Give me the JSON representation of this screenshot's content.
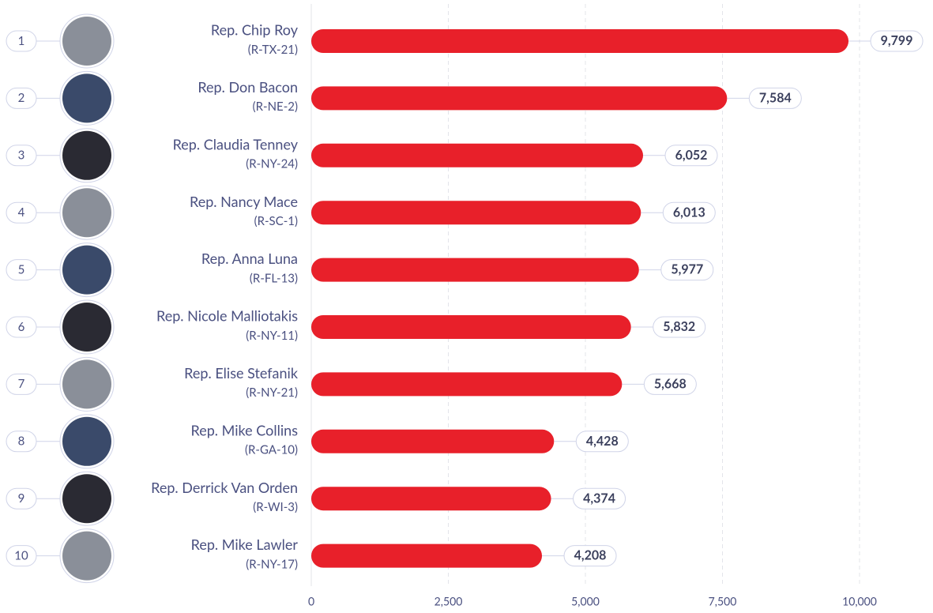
{
  "chart_data": {
    "type": "bar",
    "orientation": "horizontal",
    "ranks": [
      1,
      2,
      3,
      4,
      5,
      6,
      7,
      8,
      9,
      10
    ],
    "categories": [
      "Rep. Chip Roy",
      "Rep. Don Bacon",
      "Rep. Claudia Tenney",
      "Rep. Nancy Mace",
      "Rep. Anna Luna",
      "Rep. Nicole Malliotakis",
      "Rep. Elise Stefanik",
      "Rep. Mike Collins",
      "Rep. Derrick Van Orden",
      "Rep. Mike Lawler"
    ],
    "districts": [
      "(R-TX-21)",
      "(R-NE-2)",
      "(R-NY-24)",
      "(R-SC-1)",
      "(R-FL-13)",
      "(R-NY-11)",
      "(R-NY-21)",
      "(R-GA-10)",
      "(R-WI-3)",
      "(R-NY-17)"
    ],
    "values": [
      9799,
      7584,
      6052,
      6013,
      5977,
      5832,
      5668,
      4428,
      4374,
      4208
    ],
    "value_labels": [
      "9,799",
      "7,584",
      "6,052",
      "6,013",
      "5,977",
      "5,832",
      "5,668",
      "4,428",
      "4,374",
      "4,208"
    ],
    "color": "#e8202a",
    "xlim": [
      0,
      10000
    ],
    "xticks": [
      0,
      {
        "value": 2500,
        "label": "2,500"
      },
      {
        "value": 5000,
        "label": "5,000"
      },
      {
        "value": 7500,
        "label": "7,500"
      },
      {
        "value": 10000,
        "label": "10,000"
      }
    ],
    "grid": true
  }
}
